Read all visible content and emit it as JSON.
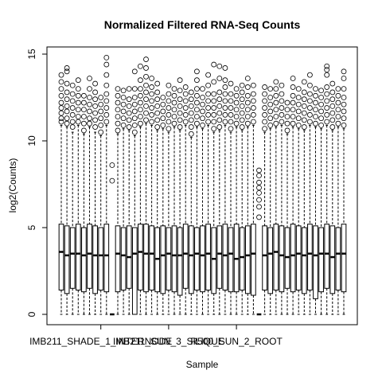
{
  "chart_data": {
    "type": "boxplot",
    "title": "Normalized Filtered RNA-Seq Counts",
    "xlabel": "Sample",
    "ylabel": "log2(Counts)",
    "ylim": [
      -0.3,
      15.2
    ],
    "yticks": [
      0,
      5,
      10,
      15
    ],
    "x_tick_labels": [
      {
        "label": "IMB211_SHADE_1_INTERNODE",
        "at": 7
      },
      {
        "label": "IMB211_SUN_3_SILIQUE",
        "at": 19
      },
      {
        "label": "R500_SUN_2_ROOT",
        "at": 31
      }
    ],
    "series": [
      {
        "q1": 1.4,
        "median": 3.6,
        "q3": 5.2,
        "lower": 0,
        "upper": 10.9,
        "outliers": [
          11.1,
          11.3,
          11.6,
          11.9,
          12.2,
          12.6,
          13.0,
          13.4,
          13.8
        ]
      },
      {
        "q1": 1.2,
        "median": 3.4,
        "q3": 5.1,
        "lower": 0,
        "upper": 10.8,
        "outliers": [
          11.0,
          11.3,
          11.7,
          12.0,
          12.4,
          12.8,
          13.3,
          14.0,
          14.2
        ]
      },
      {
        "q1": 1.5,
        "median": 3.5,
        "q3": 5.0,
        "lower": 0,
        "upper": 10.5,
        "outliers": [
          10.8,
          11.1,
          11.5,
          11.9,
          12.3,
          12.7,
          13.2
        ]
      },
      {
        "q1": 1.4,
        "median": 3.5,
        "q3": 5.2,
        "lower": 0,
        "upper": 10.9,
        "outliers": [
          11.1,
          11.4,
          11.8,
          12.2,
          12.6,
          13.0,
          13.5
        ]
      },
      {
        "q1": 1.3,
        "median": 3.4,
        "q3": 5.0,
        "lower": 0,
        "upper": 10.4,
        "outliers": [
          10.6,
          11.0,
          11.4,
          11.8,
          12.2,
          12.6
        ]
      },
      {
        "q1": 1.5,
        "median": 3.5,
        "q3": 5.2,
        "lower": 0,
        "upper": 10.8,
        "outliers": [
          11.0,
          11.3,
          11.7,
          12.1,
          12.5,
          13.0,
          13.6
        ]
      },
      {
        "q1": 1.2,
        "median": 3.4,
        "q3": 5.1,
        "lower": 0,
        "upper": 10.5,
        "outliers": [
          10.8,
          11.2,
          11.6,
          12.0,
          12.4,
          12.8,
          13.3
        ]
      },
      {
        "q1": 1.4,
        "median": 3.4,
        "q3": 5.0,
        "lower": 0,
        "upper": 10.3,
        "outliers": [
          10.5,
          10.9,
          11.3,
          11.7,
          12.1,
          12.5
        ]
      },
      {
        "q1": 1.3,
        "median": 3.4,
        "q3": 5.2,
        "lower": 0,
        "upper": 10.9,
        "outliers": [
          11.1,
          11.5,
          11.9,
          12.3,
          12.7,
          13.2,
          13.8,
          14.4,
          14.8
        ]
      },
      {
        "q1": 0.0,
        "median": 0.0,
        "q3": 0.0,
        "lower": 0,
        "upper": 0,
        "outliers": [
          7.7,
          8.6
        ]
      },
      {
        "q1": 1.3,
        "median": 3.5,
        "q3": 5.1,
        "lower": 0,
        "upper": 10.4,
        "outliers": [
          10.6,
          11.0,
          11.4,
          11.8,
          12.2,
          12.6,
          13.0
        ]
      },
      {
        "q1": 1.4,
        "median": 3.4,
        "q3": 5.0,
        "lower": 0,
        "upper": 10.7,
        "outliers": [
          10.9,
          11.3,
          11.7,
          12.1,
          12.5,
          12.9
        ]
      },
      {
        "q1": 1.5,
        "median": 3.3,
        "q3": 5.1,
        "lower": 0,
        "upper": 10.6,
        "outliers": [
          10.8,
          11.2,
          11.6,
          12.0,
          12.4,
          13.0
        ]
      },
      {
        "q1": 0.0,
        "median": 3.5,
        "q3": 5.0,
        "lower": 0,
        "upper": 10.3,
        "outliers": [
          10.5,
          10.9,
          11.3,
          11.7,
          12.1,
          12.5,
          13.0,
          14.0
        ]
      },
      {
        "q1": 1.4,
        "median": 3.6,
        "q3": 5.2,
        "lower": 0,
        "upper": 10.8,
        "outliers": [
          11.0,
          11.4,
          11.8,
          12.2,
          12.6,
          13.0,
          13.5,
          14.3
        ]
      },
      {
        "q1": 1.3,
        "median": 3.5,
        "q3": 5.2,
        "lower": 0,
        "upper": 11.0,
        "outliers": [
          11.2,
          11.6,
          12.0,
          12.4,
          12.8,
          13.2,
          13.7,
          14.2,
          14.7
        ]
      },
      {
        "q1": 1.4,
        "median": 3.5,
        "q3": 5.1,
        "lower": 0,
        "upper": 10.9,
        "outliers": [
          11.1,
          11.5,
          11.9,
          12.3,
          12.7,
          13.1,
          13.6
        ]
      },
      {
        "q1": 1.3,
        "median": 3.2,
        "q3": 5.0,
        "lower": 0,
        "upper": 10.6,
        "outliers": [
          10.8,
          11.2,
          11.6,
          12.0,
          12.4,
          12.8,
          13.3
        ]
      },
      {
        "q1": 1.2,
        "median": 3.4,
        "q3": 5.1,
        "lower": 0,
        "upper": 10.7,
        "outliers": [
          10.9,
          11.3,
          11.7,
          12.1,
          12.5
        ]
      },
      {
        "q1": 1.4,
        "median": 3.5,
        "q3": 5.0,
        "lower": 0,
        "upper": 10.5,
        "outliers": [
          10.7,
          11.1,
          11.5,
          11.9,
          12.3,
          12.7,
          13.2
        ]
      },
      {
        "q1": 1.3,
        "median": 3.4,
        "q3": 5.1,
        "lower": 0,
        "upper": 10.8,
        "outliers": [
          11.0,
          11.4,
          11.8,
          12.2,
          12.6,
          13.0
        ]
      },
      {
        "q1": 1.1,
        "median": 3.4,
        "q3": 5.0,
        "lower": 0,
        "upper": 10.6,
        "outliers": [
          10.8,
          11.2,
          11.6,
          12.0,
          12.4,
          12.9,
          13.5
        ]
      },
      {
        "q1": 1.5,
        "median": 3.5,
        "q3": 5.2,
        "lower": 0,
        "upper": 10.9,
        "outliers": [
          11.1,
          11.5,
          11.9,
          12.3,
          12.7,
          13.1
        ]
      },
      {
        "q1": 1.2,
        "median": 3.4,
        "q3": 5.1,
        "lower": 0,
        "upper": 10.2,
        "outliers": [
          10.4,
          10.8,
          11.2,
          11.6,
          12.0,
          12.4,
          12.8
        ]
      },
      {
        "q1": 1.4,
        "median": 3.5,
        "q3": 5.0,
        "lower": 0,
        "upper": 10.8,
        "outliers": [
          11.0,
          11.4,
          11.8,
          12.2,
          12.6,
          13.0,
          13.5,
          14.0
        ]
      },
      {
        "q1": 1.3,
        "median": 3.4,
        "q3": 5.1,
        "lower": 0,
        "upper": 10.7,
        "outliers": [
          10.9,
          11.3,
          11.7,
          12.1,
          12.5,
          13.0
        ]
      },
      {
        "q1": 1.4,
        "median": 3.5,
        "q3": 5.2,
        "lower": 0,
        "upper": 10.9,
        "outliers": [
          11.1,
          11.5,
          11.9,
          12.3,
          12.7,
          13.2,
          13.8
        ]
      },
      {
        "q1": 1.2,
        "median": 3.2,
        "q3": 5.0,
        "lower": 0,
        "upper": 10.5,
        "outliers": [
          10.7,
          11.1,
          11.5,
          11.9,
          12.3,
          12.7,
          13.4,
          14.4
        ]
      },
      {
        "q1": 1.5,
        "median": 3.5,
        "q3": 5.1,
        "lower": 0,
        "upper": 10.6,
        "outliers": [
          10.8,
          11.2,
          11.6,
          12.0,
          12.4,
          12.8,
          13.6,
          14.3
        ]
      },
      {
        "q1": 1.4,
        "median": 3.4,
        "q3": 5.2,
        "lower": 0,
        "upper": 10.9,
        "outliers": [
          11.1,
          11.5,
          11.9,
          12.3,
          12.7,
          13.1,
          13.5,
          14.2
        ]
      },
      {
        "q1": 1.3,
        "median": 3.5,
        "q3": 5.0,
        "lower": 0,
        "upper": 10.5,
        "outliers": [
          10.7,
          11.1,
          11.5,
          11.9,
          12.3,
          12.7,
          13.3
        ]
      },
      {
        "q1": 1.3,
        "median": 3.2,
        "q3": 5.2,
        "lower": 0,
        "upper": 10.8,
        "outliers": [
          11.0,
          11.4,
          11.8,
          12.2,
          12.6,
          13.0
        ]
      },
      {
        "q1": 1.4,
        "median": 3.3,
        "q3": 5.0,
        "lower": 0,
        "upper": 10.6,
        "outliers": [
          10.8,
          11.2,
          11.6,
          12.0,
          12.4,
          12.8,
          13.2
        ]
      },
      {
        "q1": 1.2,
        "median": 3.4,
        "q3": 5.1,
        "lower": 0,
        "upper": 10.8,
        "outliers": [
          11.0,
          11.4,
          11.8,
          12.2,
          12.6,
          13.1,
          13.6
        ]
      },
      {
        "q1": 1.1,
        "median": 3.5,
        "q3": 5.2,
        "lower": 0,
        "upper": 10.9,
        "outliers": [
          11.1,
          11.5,
          11.9,
          12.3,
          12.7,
          13.2
        ]
      },
      {
        "q1": 0.0,
        "median": 0.0,
        "q3": 0.0,
        "lower": 0,
        "upper": 0,
        "outliers": [
          5.6,
          6.2,
          6.6,
          7.0,
          7.3,
          7.6,
          8.0,
          8.3
        ]
      },
      {
        "q1": 1.4,
        "median": 3.4,
        "q3": 5.1,
        "lower": 0,
        "upper": 10.5,
        "outliers": [
          10.7,
          11.1,
          11.5,
          11.9,
          12.3,
          12.7,
          13.1
        ]
      },
      {
        "q1": 1.2,
        "median": 3.5,
        "q3": 5.0,
        "lower": 0,
        "upper": 10.7,
        "outliers": [
          10.9,
          11.3,
          11.7,
          12.1,
          12.5,
          13.0
        ]
      },
      {
        "q1": 1.4,
        "median": 3.6,
        "q3": 5.2,
        "lower": 0,
        "upper": 10.8,
        "outliers": [
          11.0,
          11.4,
          11.8,
          12.2,
          12.6,
          13.0,
          13.4
        ]
      },
      {
        "q1": 1.3,
        "median": 3.4,
        "q3": 5.1,
        "lower": 0,
        "upper": 10.9,
        "outliers": [
          11.1,
          11.5,
          11.9,
          12.3,
          12.7,
          13.2
        ]
      },
      {
        "q1": 1.5,
        "median": 3.3,
        "q3": 5.0,
        "lower": 0,
        "upper": 10.4,
        "outliers": [
          10.6,
          11.0,
          11.4,
          11.8,
          12.2
        ]
      },
      {
        "q1": 1.3,
        "median": 3.4,
        "q3": 5.2,
        "lower": 0,
        "upper": 10.8,
        "outliers": [
          11.0,
          11.4,
          11.8,
          12.2,
          12.6,
          13.1,
          13.6
        ]
      },
      {
        "q1": 1.4,
        "median": 3.5,
        "q3": 5.1,
        "lower": 0,
        "upper": 10.7,
        "outliers": [
          10.9,
          11.3,
          11.7,
          12.1,
          12.5,
          13.0
        ]
      },
      {
        "q1": 1.2,
        "median": 3.4,
        "q3": 5.0,
        "lower": 0,
        "upper": 10.6,
        "outliers": [
          10.8,
          11.2,
          11.6,
          12.0,
          12.4,
          12.8,
          13.4
        ]
      },
      {
        "q1": 1.4,
        "median": 3.5,
        "q3": 5.2,
        "lower": 0,
        "upper": 10.9,
        "outliers": [
          11.1,
          11.5,
          11.9,
          12.3,
          12.7,
          13.2,
          13.8
        ]
      },
      {
        "q1": 0.9,
        "median": 3.4,
        "q3": 5.1,
        "lower": 0,
        "upper": 10.8,
        "outliers": [
          11.0,
          11.4,
          11.8,
          12.2,
          12.6,
          13.0
        ]
      },
      {
        "q1": 1.3,
        "median": 3.5,
        "q3": 5.0,
        "lower": 0,
        "upper": 10.7,
        "outliers": [
          10.9,
          11.3,
          11.7,
          12.1,
          12.5,
          12.9
        ]
      },
      {
        "q1": 1.5,
        "median": 3.5,
        "q3": 5.2,
        "lower": 0,
        "upper": 10.9,
        "outliers": [
          11.1,
          11.5,
          11.9,
          12.3,
          12.7,
          13.1,
          13.8,
          14.1,
          14.3
        ]
      },
      {
        "q1": 1.2,
        "median": 3.3,
        "q3": 5.1,
        "lower": 0,
        "upper": 10.6,
        "outliers": [
          10.8,
          11.2,
          11.6,
          12.0,
          12.4,
          12.8,
          13.3
        ]
      },
      {
        "q1": 1.4,
        "median": 3.5,
        "q3": 5.0,
        "lower": 0,
        "upper": 10.8,
        "outliers": [
          11.0,
          11.4,
          11.8,
          12.2,
          12.6,
          13.0
        ]
      },
      {
        "q1": 1.3,
        "median": 3.5,
        "q3": 5.2,
        "lower": 0,
        "upper": 10.7,
        "outliers": [
          10.9,
          11.3,
          11.7,
          12.1,
          12.5,
          13.0,
          13.6,
          14.0
        ]
      }
    ]
  }
}
